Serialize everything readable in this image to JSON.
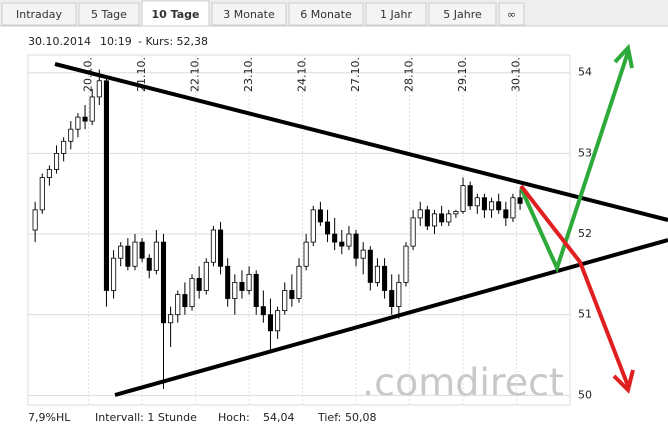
{
  "tabs": [
    "Intraday",
    "5 Tage",
    "10 Tage",
    "3 Monate",
    "6 Monate",
    "1 Jahr",
    "5 Jahre",
    "∞"
  ],
  "active_tab": "10 Tage",
  "header": {
    "date": "30.10.2014",
    "time": "10:19",
    "price": "- Kurs: 52,38"
  },
  "footer": {
    "range": "7,9%HL",
    "interval": "Intervall: 1 Stunde",
    "high_label": "Hoch:",
    "high": "54,04",
    "low_label": "Tief:",
    "low": "50,08"
  },
  "watermark": ".comdirect",
  "chart_data": {
    "type": "candlestick",
    "x": [
      0,
      1,
      2,
      3,
      4,
      5,
      6,
      7,
      8,
      9,
      10,
      11,
      12,
      13,
      14,
      15,
      16,
      17,
      18,
      19,
      20,
      21,
      22,
      23,
      24,
      25,
      26,
      27,
      28,
      29,
      30,
      31,
      32,
      33,
      34,
      35,
      36,
      37,
      38,
      39,
      40,
      41,
      42,
      43,
      44,
      45,
      46,
      47,
      48,
      49,
      50,
      51,
      52,
      53,
      54,
      55,
      56,
      57,
      58,
      59,
      60,
      61,
      62,
      63,
      64,
      65,
      66,
      67,
      68
    ],
    "open": [
      52.05,
      52.3,
      52.7,
      52.8,
      53.0,
      53.15,
      53.3,
      53.45,
      53.4,
      53.7,
      53.9,
      51.3,
      51.7,
      51.85,
      51.6,
      51.9,
      51.7,
      51.55,
      51.9,
      50.9,
      51.0,
      51.25,
      51.1,
      51.45,
      51.3,
      51.65,
      52.05,
      51.6,
      51.2,
      51.4,
      51.3,
      51.5,
      51.1,
      51.0,
      50.8,
      51.05,
      51.3,
      51.2,
      51.6,
      51.9,
      52.3,
      52.15,
      52.0,
      51.9,
      51.85,
      52.0,
      51.7,
      51.8,
      51.4,
      51.6,
      51.3,
      51.1,
      51.4,
      51.85,
      52.2,
      52.3,
      52.1,
      52.25,
      52.15,
      52.25,
      52.28,
      52.6,
      52.35,
      52.45,
      52.3,
      52.4,
      52.3,
      52.2,
      52.45
    ],
    "high": [
      52.4,
      52.75,
      52.85,
      53.1,
      53.2,
      53.4,
      53.5,
      53.6,
      53.8,
      54.04,
      53.95,
      51.8,
      51.9,
      51.95,
      52.0,
      51.95,
      51.75,
      52.05,
      52.0,
      51.1,
      51.3,
      51.4,
      51.5,
      51.6,
      51.7,
      52.1,
      52.15,
      51.7,
      51.5,
      51.55,
      51.6,
      51.55,
      51.3,
      51.2,
      51.1,
      51.4,
      51.5,
      51.7,
      52.0,
      52.35,
      52.4,
      52.3,
      52.2,
      52.05,
      52.1,
      52.05,
      51.9,
      51.85,
      51.7,
      51.7,
      51.5,
      51.5,
      51.9,
      52.3,
      52.4,
      52.35,
      52.3,
      52.35,
      52.3,
      52.3,
      52.7,
      52.65,
      52.5,
      52.5,
      52.45,
      52.5,
      52.4,
      52.5,
      52.55
    ],
    "low": [
      51.9,
      52.25,
      52.6,
      52.75,
      52.9,
      53.05,
      53.2,
      53.3,
      53.35,
      53.6,
      51.1,
      51.2,
      51.6,
      51.55,
      51.55,
      51.65,
      51.45,
      51.5,
      50.08,
      50.6,
      50.9,
      51.0,
      51.05,
      51.2,
      51.25,
      51.6,
      51.5,
      51.1,
      51.0,
      51.2,
      51.25,
      51.0,
      50.9,
      50.55,
      50.7,
      51.0,
      51.1,
      51.15,
      51.55,
      51.85,
      52.1,
      51.9,
      51.8,
      51.75,
      51.8,
      51.6,
      51.5,
      51.3,
      51.35,
      51.2,
      51.0,
      50.95,
      51.35,
      51.8,
      52.1,
      52.05,
      52.0,
      52.1,
      52.1,
      52.2,
      52.25,
      52.3,
      52.25,
      52.2,
      52.2,
      52.25,
      52.1,
      52.15,
      52.3
    ],
    "close": [
      52.3,
      52.7,
      52.8,
      53.0,
      53.15,
      53.3,
      53.45,
      53.4,
      53.7,
      53.9,
      51.3,
      51.7,
      51.85,
      51.6,
      51.9,
      51.7,
      51.55,
      51.9,
      50.9,
      51.0,
      51.25,
      51.1,
      51.45,
      51.3,
      51.65,
      52.05,
      51.6,
      51.2,
      51.4,
      51.3,
      51.5,
      51.1,
      51.0,
      50.8,
      51.05,
      51.3,
      51.2,
      51.6,
      51.9,
      52.3,
      52.15,
      52.0,
      51.9,
      51.85,
      52.0,
      51.7,
      51.8,
      51.4,
      51.6,
      51.3,
      51.1,
      51.4,
      51.85,
      52.2,
      52.3,
      52.1,
      52.25,
      52.15,
      52.25,
      52.28,
      52.6,
      52.35,
      52.45,
      52.3,
      52.4,
      52.3,
      52.2,
      52.45,
      52.38
    ],
    "up_color": "#ffffff",
    "down_color": "#000000",
    "xlim": [
      -1,
      75
    ],
    "xticks": [
      {
        "value": 7.5,
        "label": "20.10."
      },
      {
        "value": 15,
        "label": "21.10."
      },
      {
        "value": 22.5,
        "label": "22.10."
      },
      {
        "value": 30,
        "label": "23.10."
      },
      {
        "value": 37.5,
        "label": "24.10."
      },
      {
        "value": 45,
        "label": "27.10."
      },
      {
        "value": 52.5,
        "label": "28.10."
      },
      {
        "value": 60,
        "label": "29.10."
      },
      {
        "value": 67.5,
        "label": "30.10."
      }
    ],
    "ylim": [
      49.88,
      54.22
    ],
    "yticks": [
      50,
      51,
      52,
      53,
      54
    ],
    "grid": true
  }
}
